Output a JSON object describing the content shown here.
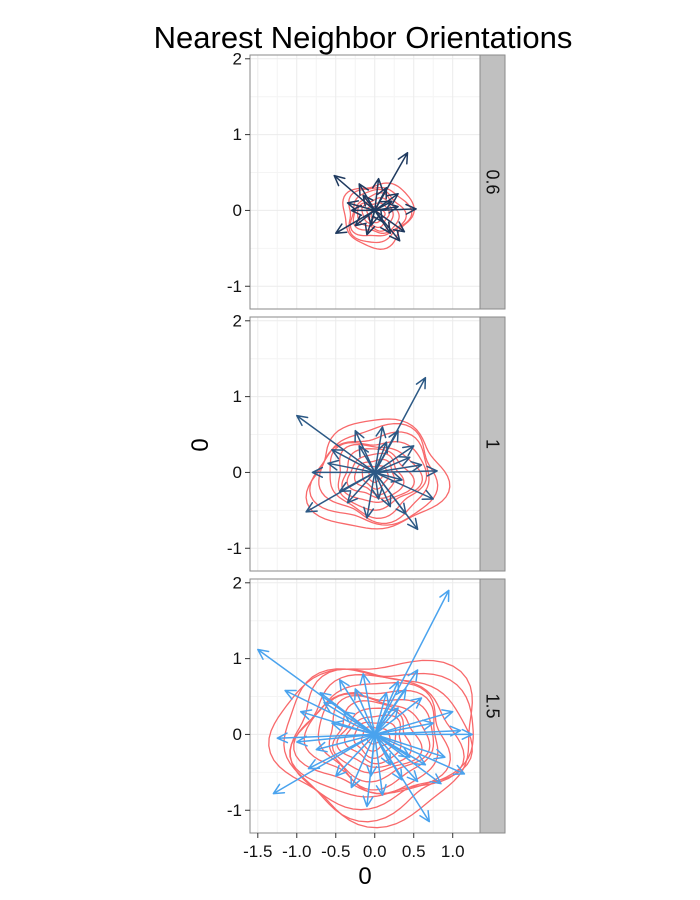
{
  "chart_data": {
    "type": "faceted-vector-field-with-density-contours",
    "title": "Nearest Neighbor Orientations",
    "xlabel": "0",
    "ylabel": "0",
    "xlim": [
      -1.6,
      1.35
    ],
    "ylim": [
      -1.3,
      2.05
    ],
    "x_ticks": [
      -1.5,
      -1.0,
      -0.5,
      0.0,
      0.5,
      1.0
    ],
    "x_tick_labels": [
      "-1.5",
      "-1.0",
      "-0.5",
      "0.0",
      "0.5",
      "1.0"
    ],
    "y_ticks": [
      -1,
      0,
      1,
      2
    ],
    "y_tick_labels": [
      "-1",
      "0",
      "1",
      "2"
    ],
    "grid": true,
    "contour_color": "#f8696b",
    "panels": [
      {
        "strip_label": "0.6",
        "arrow_color": "#1f3a5f",
        "contours": {
          "rx": 0.44,
          "ry": 0.42,
          "levels": 8
        },
        "arrows": [
          [
            0.42,
            0.76
          ],
          [
            -0.52,
            0.46
          ],
          [
            0.53,
            0.02
          ],
          [
            -0.5,
            -0.3
          ],
          [
            0.38,
            -0.28
          ],
          [
            0.32,
            -0.4
          ],
          [
            -0.35,
            0.1
          ],
          [
            0.3,
            0.22
          ],
          [
            -0.2,
            0.35
          ],
          [
            0.05,
            0.42
          ],
          [
            -0.25,
            -0.2
          ],
          [
            0.2,
            -0.3
          ],
          [
            0.15,
            0.3
          ],
          [
            -0.1,
            -0.32
          ],
          [
            0.3,
            0.05
          ],
          [
            -0.3,
            0.0
          ],
          [
            0.1,
            -0.15
          ],
          [
            -0.15,
            0.2
          ],
          [
            0.22,
            0.12
          ],
          [
            -0.05,
            -0.2
          ]
        ]
      },
      {
        "strip_label": "1",
        "arrow_color": "#2c5985",
        "contours": {
          "rx": 0.85,
          "ry": 0.72,
          "levels": 10
        },
        "arrows": [
          [
            0.65,
            1.25
          ],
          [
            -1.0,
            0.75
          ],
          [
            -0.88,
            -0.52
          ],
          [
            0.8,
            0.02
          ],
          [
            0.75,
            -0.35
          ],
          [
            0.55,
            -0.75
          ],
          [
            -0.8,
            0.0
          ],
          [
            -0.55,
            0.3
          ],
          [
            0.5,
            0.35
          ],
          [
            0.4,
            -0.55
          ],
          [
            0.1,
            0.6
          ],
          [
            -0.25,
            0.55
          ],
          [
            -0.45,
            -0.25
          ],
          [
            0.3,
            0.55
          ],
          [
            -0.1,
            -0.6
          ],
          [
            0.2,
            -0.45
          ],
          [
            0.6,
            0.1
          ],
          [
            -0.35,
            -0.4
          ],
          [
            0.15,
            0.4
          ],
          [
            -0.6,
            0.12
          ],
          [
            0.35,
            -0.1
          ],
          [
            -0.2,
            0.35
          ],
          [
            0.45,
            0.2
          ],
          [
            0.05,
            -0.35
          ]
        ]
      },
      {
        "strip_label": "1.5",
        "arrow_color": "#4aa3ee",
        "contours": {
          "rx": 1.28,
          "ry": 1.05,
          "levels": 14
        },
        "arrows": [
          [
            0.95,
            1.9
          ],
          [
            -1.5,
            1.12
          ],
          [
            -1.3,
            -0.78
          ],
          [
            -1.15,
            0.58
          ],
          [
            -1.25,
            -0.05
          ],
          [
            1.25,
            0.0
          ],
          [
            1.15,
            -0.52
          ],
          [
            0.7,
            -1.15
          ],
          [
            -0.1,
            -0.95
          ],
          [
            0.55,
            -0.62
          ],
          [
            -0.45,
            0.72
          ],
          [
            -0.65,
            0.42
          ],
          [
            0.3,
            0.7
          ],
          [
            -0.95,
            0.3
          ],
          [
            0.6,
            0.48
          ],
          [
            0.9,
            -0.3
          ],
          [
            0.35,
            -0.6
          ],
          [
            -0.5,
            -0.55
          ],
          [
            -0.75,
            -0.2
          ],
          [
            0.15,
            0.55
          ],
          [
            -0.25,
            0.6
          ],
          [
            0.75,
            0.15
          ],
          [
            -0.3,
            -0.7
          ],
          [
            0.45,
            -0.3
          ],
          [
            -0.55,
            0.15
          ],
          [
            1.0,
            0.3
          ],
          [
            -0.85,
            -0.45
          ],
          [
            0.1,
            -0.8
          ],
          [
            0.55,
            0.85
          ],
          [
            -0.15,
            0.8
          ],
          [
            0.85,
            -0.65
          ],
          [
            -0.05,
            -0.55
          ],
          [
            0.3,
            0.35
          ],
          [
            -0.4,
            0.3
          ],
          [
            0.65,
            -0.4
          ],
          [
            -0.7,
            0.55
          ],
          [
            0.2,
            -0.4
          ],
          [
            1.1,
            0.05
          ],
          [
            -1.0,
            -0.1
          ],
          [
            0.4,
            0.6
          ]
        ]
      }
    ]
  }
}
